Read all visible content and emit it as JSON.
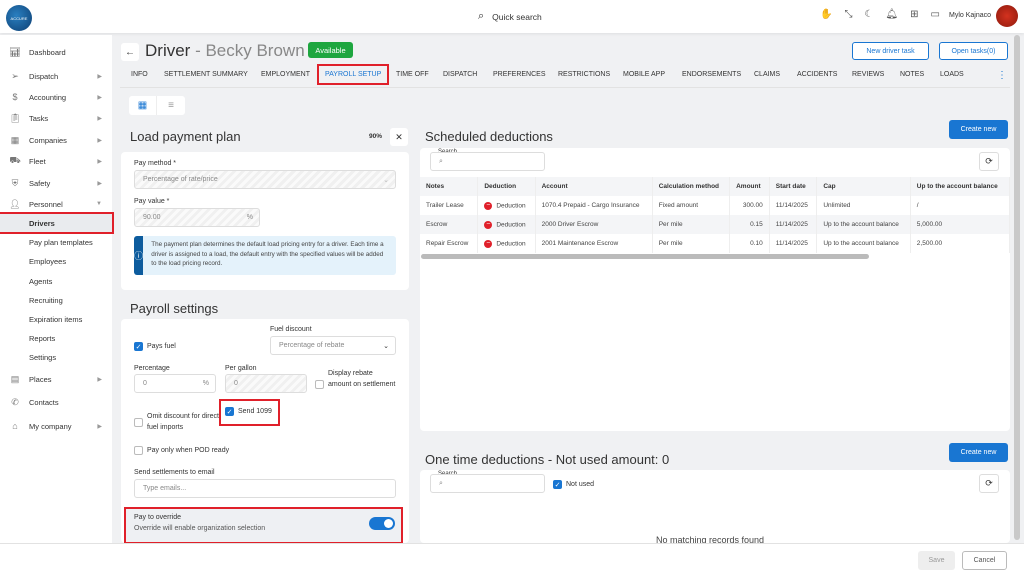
{
  "app": {
    "logo": "ACCURE",
    "search_label": "Quick search",
    "user_name": "Mylo Kajnaco",
    "avatar_text": "ACCURE"
  },
  "topbar_icons": [
    "hand-icon",
    "collapse-icon",
    "moon-icon",
    "bell-icon",
    "apps-icon",
    "wallet-icon"
  ],
  "sidebar": {
    "items": [
      {
        "label": "Dashboard",
        "icon": "chart-icon"
      },
      {
        "label": "Dispatch",
        "icon": "send-icon",
        "arrow": true
      },
      {
        "label": "Accounting",
        "icon": "dollar-icon",
        "arrow": true
      },
      {
        "label": "Tasks",
        "icon": "clipboard-icon",
        "arrow": true
      },
      {
        "label": "Companies",
        "icon": "building-icon",
        "arrow": true
      },
      {
        "label": "Fleet",
        "icon": "truck-icon",
        "arrow": true
      },
      {
        "label": "Safety",
        "icon": "shield-icon",
        "arrow": true
      },
      {
        "label": "Personnel",
        "icon": "user-icon",
        "arrow": true,
        "open": true
      }
    ],
    "subitems": [
      "Drivers",
      "Pay plan templates",
      "Employees",
      "Agents",
      "Recruiting",
      "Expiration items",
      "Reports",
      "Settings"
    ],
    "bottom": [
      {
        "label": "Places",
        "icon": "map-icon",
        "arrow": true
      },
      {
        "label": "Contacts",
        "icon": "phone-icon"
      },
      {
        "label": "My company",
        "icon": "home-icon",
        "arrow": true
      }
    ]
  },
  "header": {
    "title_prefix": "Driver",
    "title_sep": " - ",
    "driver_name": "Becky Brown",
    "status": "Available",
    "new_task": "New driver task",
    "open_tasks": "Open tasks(0)"
  },
  "tabs": [
    "INFO",
    "SETTLEMENT SUMMARY",
    "EMPLOYMENT",
    "PAYROLL SETUP",
    "TIME OFF",
    "DISPATCH",
    "PREFERENCES",
    "RESTRICTIONS",
    "MOBILE APP",
    "ENDORSEMENTS",
    "CLAIMS",
    "ACCIDENTS",
    "REVIEWS",
    "NOTES",
    "LOADS"
  ],
  "active_tab": "PAYROLL SETUP",
  "load_plan": {
    "title": "Load payment plan",
    "percent": "90%",
    "pay_method_label": "Pay method *",
    "pay_method": "Percentage of rate/price",
    "pay_value_label": "Pay value *",
    "pay_value": "90.00",
    "unit": "%",
    "info": "The payment plan determines the default load pricing entry for a driver. Each time a driver is assigned to a load, the default entry with the specified values will be added to the load pricing record."
  },
  "payroll": {
    "title": "Payroll settings",
    "pays_fuel": "Pays fuel",
    "fuel_discount_label": "Fuel discount",
    "fuel_discount": "Percentage of rebate",
    "percentage_label": "Percentage",
    "percentage": "0",
    "per_gallon_label": "Per gallon",
    "per_gallon": "0",
    "display_rebate": "Display rebate amount on settlement",
    "omit_discount": "Omit discount for direct fuel imports",
    "send_1099": "Send 1099",
    "pay_pod": "Pay only when POD ready",
    "email_label": "Send settlements to email",
    "email_placeholder": "Type emails...",
    "override_title": "Pay to override",
    "override_desc": "Override will enable organization selection"
  },
  "scheduled": {
    "title": "Scheduled deductions",
    "create": "Create new",
    "search_label": "Search",
    "columns": [
      "Notes",
      "Deduction",
      "Account",
      "Calculation method",
      "Amount",
      "Start date",
      "Cap",
      "Up to the account balance"
    ],
    "rows": [
      [
        "Trailer Lease",
        "Deduction",
        "1070.4 Prepaid - Cargo Insurance",
        "Fixed amount",
        "300.00",
        "11/14/2025",
        "Unlimited",
        "/"
      ],
      [
        "Escrow",
        "Deduction",
        "2000 Driver Escrow",
        "Per mile",
        "0.15",
        "11/14/2025",
        "Up to the account balance",
        "5,000.00"
      ],
      [
        "Repair Escrow",
        "Deduction",
        "2001 Maintenance Escrow",
        "Per mile",
        "0.10",
        "11/14/2025",
        "Up to the account balance",
        "2,500.00"
      ]
    ]
  },
  "one_time": {
    "title": "One time deductions - Not used amount: 0",
    "create": "Create new",
    "search_label": "Search",
    "not_used": "Not used",
    "empty": "No matching records found"
  },
  "footer": {
    "save": "Save",
    "cancel": "Cancel"
  },
  "colors": {
    "accent": "#1976d2",
    "highlight": "#e0202a",
    "available": "#1ea63f"
  }
}
